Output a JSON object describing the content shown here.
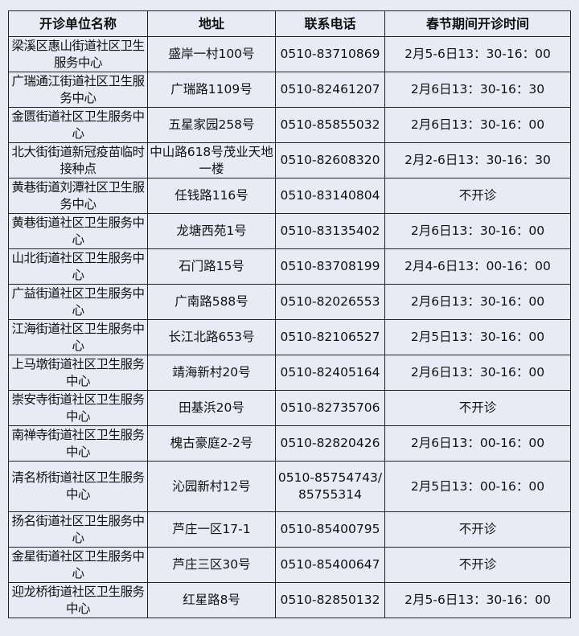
{
  "table": {
    "headers": [
      "开诊单位名称",
      "地址",
      "联系电话",
      "春节期间开诊时间"
    ],
    "rows": [
      {
        "name": "梁溪区惠山街道社区卫生服务中心",
        "address": "盛岸一村100号",
        "phone": "0510-83710869",
        "hours": "2月5-6日13：30-16：00"
      },
      {
        "name": "广瑞通江街道社区卫生服务中心",
        "address": "广瑞路1109号",
        "phone": "0510-82461207",
        "hours": "2月6日13：30-16：30"
      },
      {
        "name": "金匮街道社区卫生服务中心",
        "address": "五星家园258号",
        "phone": "0510-85855032",
        "hours": "2月6日13：30-16：00"
      },
      {
        "name": "北大街街道新冠疫苗临时接种点",
        "address": "中山路618号茂业天地一楼",
        "phone": "0510-82608320",
        "hours": "2月2-6日13：30-16：30"
      },
      {
        "name": "黄巷街道刘潭社区卫生服务中心",
        "address": "任钱路116号",
        "phone": "0510-83140804",
        "hours": "不开诊"
      },
      {
        "name": "黄巷街道社区卫生服务中心",
        "address": "龙塘西苑1号",
        "phone": "0510-83135402",
        "hours": "2月6日13：30-16：00"
      },
      {
        "name": "山北街道社区卫生服务中心",
        "address": "石门路15号",
        "phone": "0510-83708199",
        "hours": "2月4-6日13：00-16：00"
      },
      {
        "name": "广益街道社区卫生服务中心",
        "address": "广南路588号",
        "phone": "0510-82026553",
        "hours": "2月6日13：30-16：00"
      },
      {
        "name": "江海街道社区卫生服务中心",
        "address": "长江北路653号",
        "phone": "0510-82106527",
        "hours": "2月5日13：30-16：00"
      },
      {
        "name": "上马墩街道社区卫生服务中心",
        "address": "靖海新村20号",
        "phone": "0510-82405164",
        "hours": "2月6日13：30-16：00"
      },
      {
        "name": "崇安寺街道社区卫生服务中心",
        "address": "田基浜20号",
        "phone": "0510-82735706",
        "hours": "不开诊"
      },
      {
        "name": "南禅寺街道社区卫生服务中心",
        "address": "槐古豪庭2-2号",
        "phone": "0510-82820426",
        "hours": "2月6日13：00-16：00"
      },
      {
        "name": "清名桥街道社区卫生服务中心",
        "address": "沁园新村12号",
        "phone": "0510-85754743/85755314",
        "hours": "2月5日13：00-16：00"
      },
      {
        "name": "扬名街道社区卫生服务中心",
        "address": "芦庄一区17-1",
        "phone": "0510-85400795",
        "hours": "不开诊"
      },
      {
        "name": "金星街道社区卫生服务中心",
        "address": "芦庄三区30号",
        "phone": "0510-85400647",
        "hours": "不开诊"
      },
      {
        "name": "迎龙桥街道社区卫生服务中心",
        "address": "红星路8号",
        "phone": "0510-82850132",
        "hours": "2月5-6日13：30-16：00"
      }
    ]
  },
  "colors": {
    "background": "#e8ebf5",
    "border": "#222222",
    "text": "#111111"
  }
}
